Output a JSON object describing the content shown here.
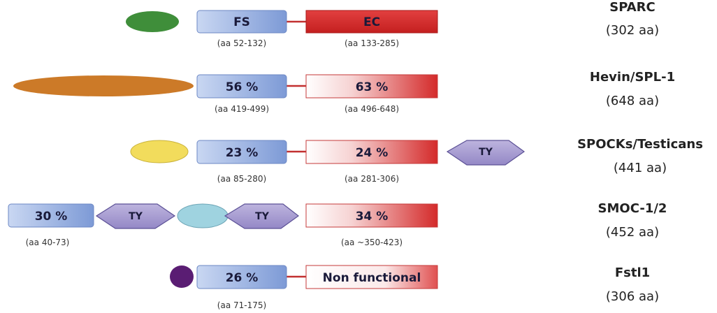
{
  "colors": {
    "fs_domain": "#8fa8d8",
    "ec_domain": "#d42a2a",
    "ty_domain": "#a99fd0",
    "linker": "#c23030"
  },
  "proteins": [
    {
      "name": "SPARC",
      "length": "(302 aa)",
      "nterm_color": "#3f8e3a",
      "fs_label": "FS",
      "fs_range": "(aa 52-132)",
      "ec_label": "EC",
      "ec_range": "(aa 133-285)",
      "ec_style": "solid"
    },
    {
      "name": "Hevin/SPL-1",
      "length": "(648 aa)",
      "nterm_color": "#cc7a28",
      "fs_label": "56 %",
      "fs_range": "(aa 419-499)",
      "ec_label": "63 %",
      "ec_range": "(aa 496-648)",
      "ec_style": "gradient"
    },
    {
      "name": "SPOCKs/Testicans",
      "length": "(441 aa)",
      "nterm_color": "#f2dc5c",
      "fs_label": "23 %",
      "fs_range": "(aa 85-280)",
      "ec_label": "24 %",
      "ec_range": "(aa 281-306)",
      "ec_style": "gradient",
      "ty_label": "TY"
    },
    {
      "name": "SMOC-1/2",
      "length": "(452 aa)",
      "nterm_color": "#9fd3e0",
      "fs_label": "30 %",
      "fs_range": "(aa 40-73)",
      "ec_label": "34 %",
      "ec_range": "(aa ~350-423)",
      "ec_style": "gradient",
      "ty_label_1": "TY",
      "ty_label_2": "TY"
    },
    {
      "name": "Fstl1",
      "length": "(306 aa)",
      "nterm_color": "#5a1d73",
      "fs_label": "26 %",
      "fs_range": "(aa 71-175)",
      "ec_label": "Non functional",
      "ec_style": "faded"
    }
  ]
}
